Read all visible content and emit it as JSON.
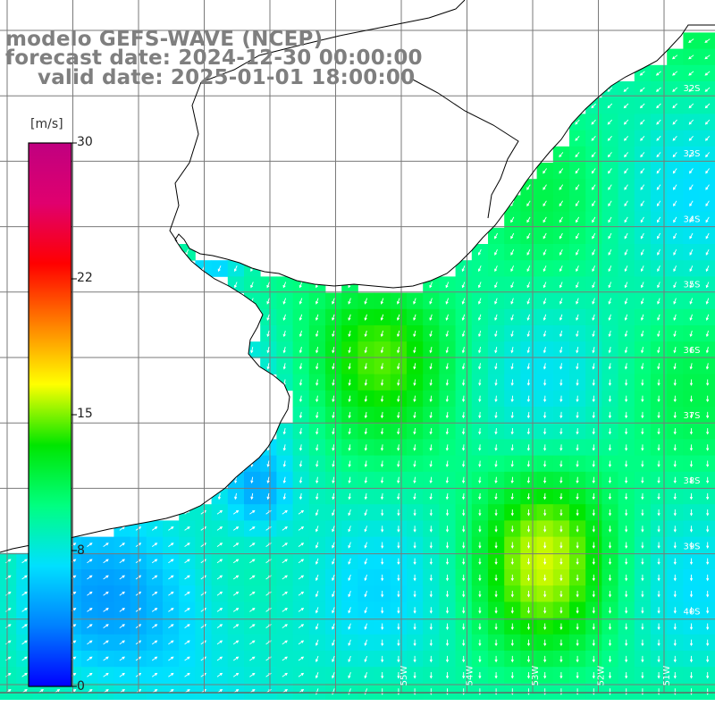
{
  "header": {
    "model": "modelo GEFS-WAVE (NCEP)",
    "forecast": "forecast date: 2024-12-30 00:00:00",
    "valid": "valid date: 2025-01-01 18:00:00"
  },
  "colorbar": {
    "unit": "[m/s]",
    "ticks": [
      "30",
      "22",
      "15",
      "8",
      "0"
    ],
    "range": [
      0,
      30
    ],
    "colors": [
      "#0000ff",
      "#0080ff",
      "#00e0ff",
      "#00ff80",
      "#00e600",
      "#ffff00",
      "#ff8000",
      "#ff0000",
      "#e0006e",
      "#c00080"
    ]
  },
  "map": {
    "lat_labels": [
      "32S",
      "33S",
      "34S",
      "35S",
      "36S",
      "37S",
      "38S",
      "39S",
      "40S"
    ],
    "lon_labels": [
      "55W",
      "54W",
      "53W",
      "52W",
      "51W"
    ],
    "colors": {
      "land": "#ffffff",
      "coast": "#000000",
      "grid": "#7a7a7a",
      "arrow": "#ffffff"
    }
  }
}
